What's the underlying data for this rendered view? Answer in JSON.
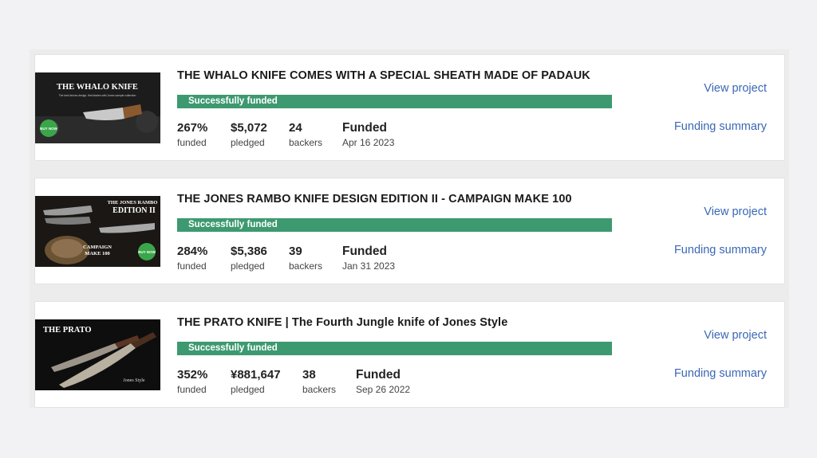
{
  "projects": [
    {
      "title": "THE WHALO KNIFE COMES WITH A SPECIAL SHEATH MADE OF PADAUK",
      "status": "Successfully funded",
      "thumb": {
        "line1": "THE WHALO KNIFE",
        "line2": "",
        "tagline": "The best knives design, first blades with Jones sample collection",
        "badge": "BUY NOW"
      },
      "stats": [
        {
          "value": "267%",
          "label": "funded"
        },
        {
          "value": "$5,072",
          "label": "pledged"
        },
        {
          "value": "24",
          "label": "backers"
        },
        {
          "value": "Funded",
          "label": "Apr 16 2023"
        }
      ],
      "view_label": "View project",
      "summary_label": "Funding summary"
    },
    {
      "title": "THE JONES RAMBO KNIFE DESIGN EDITION II - CAMPAIGN MAKE 100",
      "status": "Successfully funded",
      "thumb": {
        "line1": "THE JONES RAMBO",
        "line2": "EDITION II",
        "line3": "CAMPAIGN",
        "line4": "MAKE 100",
        "badge": "BUY NOW"
      },
      "stats": [
        {
          "value": "284%",
          "label": "funded"
        },
        {
          "value": "$5,386",
          "label": "pledged"
        },
        {
          "value": "39",
          "label": "backers"
        },
        {
          "value": "Funded",
          "label": "Jan 31 2023"
        }
      ],
      "view_label": "View project",
      "summary_label": "Funding summary"
    },
    {
      "title": "THE PRATO KNIFE | The Fourth Jungle knife of Jones Style",
      "status": "Successfully funded",
      "thumb": {
        "line1": "THE PRATO",
        "line2": "Jones Style"
      },
      "stats": [
        {
          "value": "352%",
          "label": "funded"
        },
        {
          "value": "¥881,647",
          "label": "pledged"
        },
        {
          "value": "38",
          "label": "backers"
        },
        {
          "value": "Funded",
          "label": "Sep 26 2022"
        }
      ],
      "view_label": "View project",
      "summary_label": "Funding summary"
    }
  ],
  "colors": {
    "funded_bar": "#3d9970",
    "link": "#3b67b5"
  }
}
